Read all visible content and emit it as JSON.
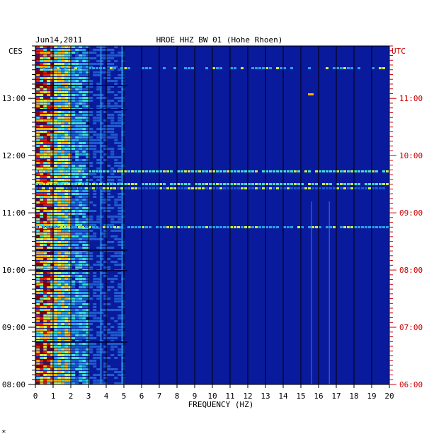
{
  "chart_data": {
    "type": "heatmap",
    "title_left": "Jun14,2011",
    "title_center": "HROE HHZ BW 01 (Hohe Rhoen)",
    "left_timezone": "CES",
    "right_timezone": "UTC",
    "xlabel": "FREQUENCY (HZ)",
    "xlim": [
      0,
      20
    ],
    "x_ticks": [
      "0",
      "1",
      "2",
      "3",
      "4",
      "5",
      "6",
      "7",
      "8",
      "9",
      "10",
      "11",
      "12",
      "13",
      "14",
      "15",
      "16",
      "17",
      "18",
      "19",
      "20"
    ],
    "left_ticks": [
      "08:00",
      "09:00",
      "10:00",
      "11:00",
      "12:00",
      "13:00"
    ],
    "right_ticks": [
      "06:00",
      "07:00",
      "08:00",
      "09:00",
      "10:00",
      "11:00"
    ],
    "time_range_local": [
      "08:00",
      "13:55"
    ],
    "grid": true,
    "colors": {
      "background": "#0a1a9c",
      "grid": "#000000",
      "left_axis_text": "#000000",
      "right_axis_text": "#cc0000",
      "colormap": [
        "#0a1a9c",
        "#1f5ccf",
        "#27a3e8",
        "#40e0d0",
        "#c7f04a",
        "#ffb000",
        "#e02000",
        "#8b0000"
      ]
    }
  },
  "footer_mark": "*"
}
